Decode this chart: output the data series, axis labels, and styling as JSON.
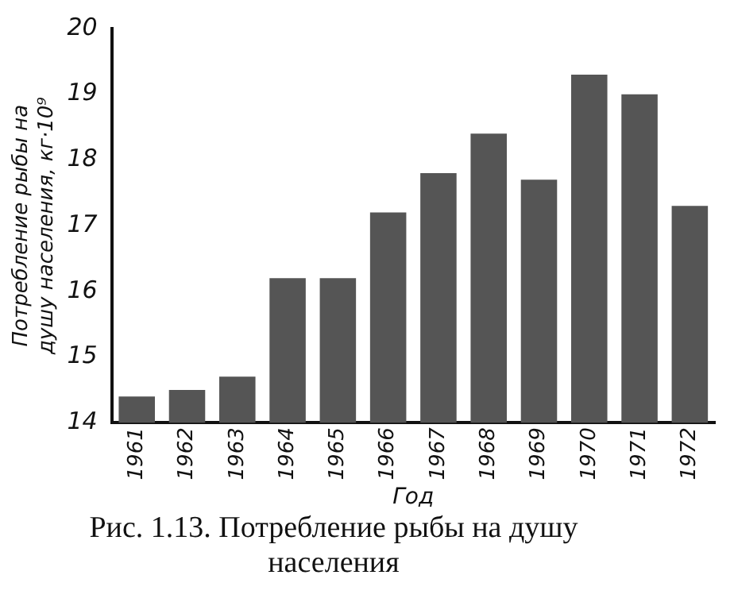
{
  "chart_data": {
    "type": "bar",
    "title": "Рис. 1.13. Потребление рыбы на душу населения",
    "xlabel": "Год",
    "ylabel": "Потребление рыбы на душу населения, кг·10⁹",
    "categories": [
      "1961",
      "1962",
      "1963",
      "1964",
      "1965",
      "1966",
      "1967",
      "1968",
      "1969",
      "1970",
      "1971",
      "1972"
    ],
    "values": [
      14.4,
      14.5,
      14.7,
      16.2,
      16.2,
      17.2,
      17.8,
      18.4,
      17.7,
      19.3,
      19.0,
      17.3
    ],
    "color": "#555555",
    "ylim": [
      14,
      20
    ],
    "yticks": [
      14,
      15,
      16,
      17,
      18,
      19,
      20
    ],
    "grid": false,
    "legend": false
  }
}
